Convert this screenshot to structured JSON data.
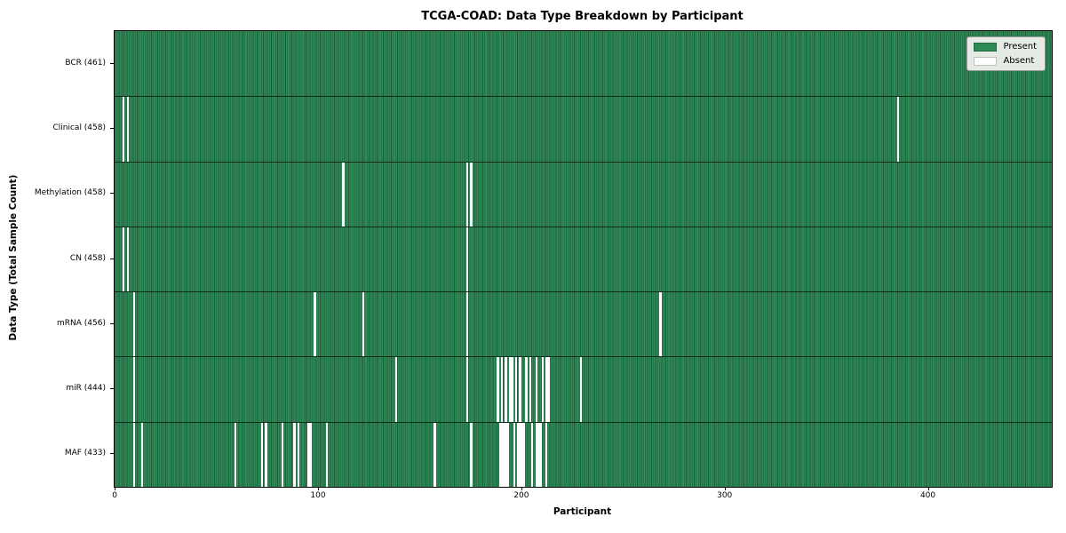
{
  "chart_data": {
    "type": "heatmap",
    "title": "TCGA-COAD: Data Type Breakdown by Participant",
    "xlabel": "Participant",
    "ylabel": "Data Type (Total Sample Count)",
    "x_ticks": [
      0,
      100,
      200,
      300,
      400
    ],
    "xlim": [
      -0.5,
      460.5
    ],
    "n_participants": 461,
    "grid": false,
    "legend_position": "upper right",
    "colors": {
      "present": "#2e8b57",
      "absent": "#ffffff"
    },
    "legend": [
      {
        "label": "Present",
        "color": "#2e8b57"
      },
      {
        "label": "Absent",
        "color": "#ffffff"
      }
    ],
    "rows": [
      {
        "key": "bcr",
        "label": "BCR (461)",
        "total_samples": 461,
        "absent_participants": []
      },
      {
        "key": "clinical",
        "label": "Clinical (458)",
        "total_samples": 458,
        "absent_participants": [
          4,
          6,
          385
        ]
      },
      {
        "key": "methylation",
        "label": "Methylation (458)",
        "total_samples": 458,
        "absent_participants": [
          112,
          173,
          175
        ]
      },
      {
        "key": "cn",
        "label": "CN (458)",
        "total_samples": 458,
        "absent_participants": [
          4,
          6,
          173
        ]
      },
      {
        "key": "mrna",
        "label": "mRNA (456)",
        "total_samples": 456,
        "absent_participants": [
          9,
          98,
          122,
          173,
          268
        ]
      },
      {
        "key": "mir",
        "label": "miR (444)",
        "total_samples": 444,
        "absent_participants": [
          9,
          138,
          173,
          188,
          190,
          192,
          194,
          195,
          197,
          199,
          202,
          204,
          207,
          210,
          212,
          213,
          229
        ]
      },
      {
        "key": "maf",
        "label": "MAF (433)",
        "total_samples": 433,
        "absent_participants": [
          9,
          13,
          59,
          72,
          74,
          82,
          88,
          90,
          95,
          96,
          104,
          157,
          175,
          189,
          190,
          191,
          192,
          193,
          196,
          198,
          199,
          200,
          201,
          205,
          207,
          208,
          209,
          212
        ]
      }
    ]
  }
}
